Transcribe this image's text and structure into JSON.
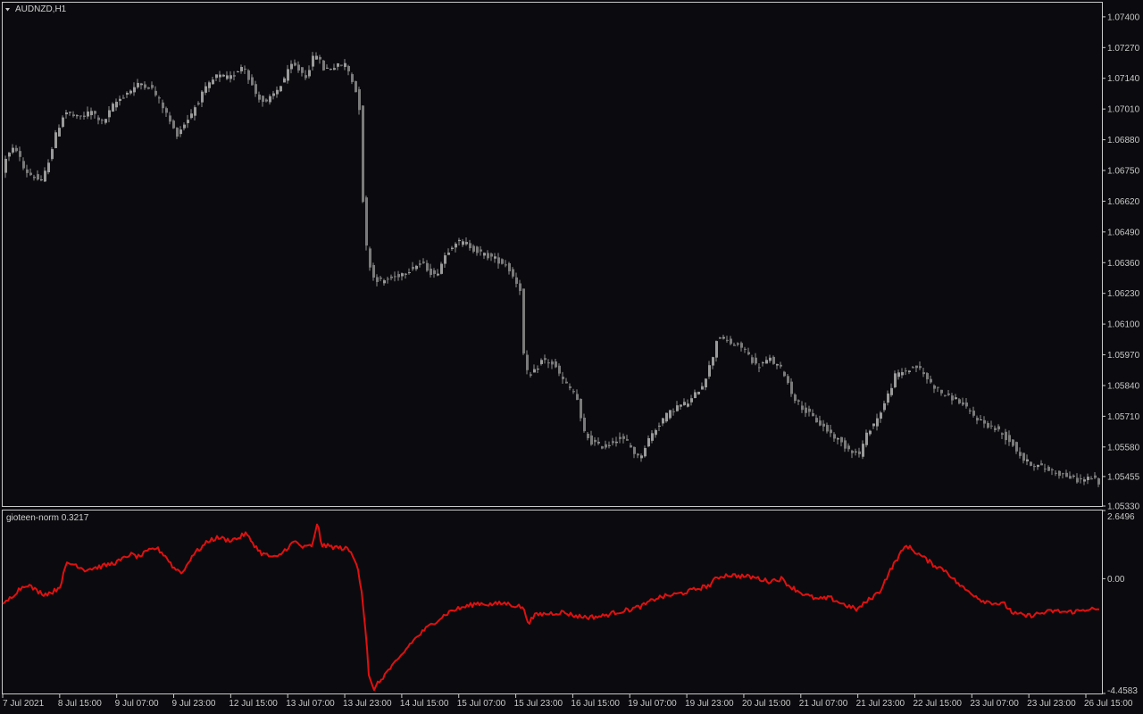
{
  "symbol_label": "AUDNZD,H1",
  "indicator_label": "gioteen-norm 0.3217",
  "colors": {
    "background": "#0b0b0f",
    "frame": "#c8c8c8",
    "candle": "#8c8c8c",
    "indicator_line": "#e01010",
    "text": "#c8c8c8"
  },
  "chart_data": [
    {
      "type": "candlestick",
      "ylim": [
        1.0533,
        1.0746
      ],
      "y_ticks": [
        "1.07400",
        "1.07270",
        "1.07140",
        "1.07010",
        "1.06880",
        "1.06750",
        "1.06620",
        "1.06490",
        "1.06360",
        "1.06230",
        "1.06100",
        "1.05970",
        "1.05840",
        "1.05710",
        "1.05580",
        "1.05455",
        "1.05330"
      ],
      "x_ticks": [
        "7 Jul 2021",
        "8 Jul 15:00",
        "9 Jul 07:00",
        "9 Jul 23:00",
        "12 Jul 15:00",
        "13 Jul 07:00",
        "13 Jul 23:00",
        "14 Jul 15:00",
        "15 Jul 07:00",
        "15 Jul 23:00",
        "16 Jul 15:00",
        "19 Jul 07:00",
        "19 Jul 23:00",
        "20 Jul 15:00",
        "21 Jul 07:00",
        "21 Jul 23:00",
        "22 Jul 15:00",
        "23 Jul 07:00",
        "23 Jul 23:00",
        "26 Jul 15:00"
      ],
      "close_path": [
        [
          0,
          1.0663
        ],
        [
          8,
          1.068
        ],
        [
          20,
          1.0685
        ],
        [
          30,
          1.0675
        ],
        [
          50,
          1.067
        ],
        [
          65,
          1.069
        ],
        [
          75,
          1.07
        ],
        [
          90,
          1.0697
        ],
        [
          105,
          1.07
        ],
        [
          118,
          1.0695
        ],
        [
          130,
          1.0703
        ],
        [
          145,
          1.0708
        ],
        [
          160,
          1.0712
        ],
        [
          172,
          1.071
        ],
        [
          185,
          1.0702
        ],
        [
          200,
          1.069
        ],
        [
          215,
          1.0698
        ],
        [
          230,
          1.0708
        ],
        [
          245,
          1.0715
        ],
        [
          260,
          1.0714
        ],
        [
          275,
          1.072
        ],
        [
          288,
          1.0708
        ],
        [
          300,
          1.0703
        ],
        [
          315,
          1.071
        ],
        [
          330,
          1.072
        ],
        [
          345,
          1.0715
        ],
        [
          356,
          1.0725
        ],
        [
          365,
          1.0718
        ],
        [
          378,
          1.0719
        ],
        [
          390,
          1.072
        ],
        [
          400,
          1.071
        ],
        [
          406,
          1.07
        ],
        [
          410,
          1.065
        ],
        [
          414,
          1.064
        ],
        [
          420,
          1.063
        ],
        [
          430,
          1.0628
        ],
        [
          445,
          1.063
        ],
        [
          460,
          1.0633
        ],
        [
          475,
          1.0636
        ],
        [
          490,
          1.063
        ],
        [
          502,
          1.064
        ],
        [
          512,
          1.0645
        ],
        [
          525,
          1.0644
        ],
        [
          540,
          1.064
        ],
        [
          555,
          1.0638
        ],
        [
          570,
          1.0635
        ],
        [
          585,
          1.0625
        ],
        [
          590,
          1.059
        ],
        [
          598,
          1.0588
        ],
        [
          610,
          1.0595
        ],
        [
          622,
          1.0593
        ],
        [
          635,
          1.0585
        ],
        [
          648,
          1.058
        ],
        [
          655,
          1.0565
        ],
        [
          665,
          1.056
        ],
        [
          680,
          1.0558
        ],
        [
          695,
          1.0562
        ],
        [
          705,
          1.056
        ],
        [
          718,
          1.0553
        ],
        [
          730,
          1.0562
        ],
        [
          745,
          1.057
        ],
        [
          760,
          1.0575
        ],
        [
          775,
          1.0577
        ],
        [
          790,
          1.0585
        ],
        [
          800,
          1.0595
        ],
        [
          806,
          1.0605
        ],
        [
          820,
          1.0602
        ],
        [
          835,
          1.06
        ],
        [
          850,
          1.0592
        ],
        [
          865,
          1.0595
        ],
        [
          880,
          1.059
        ],
        [
          890,
          1.058
        ],
        [
          905,
          1.0573
        ],
        [
          920,
          1.0568
        ],
        [
          935,
          1.0563
        ],
        [
          950,
          1.0558
        ],
        [
          965,
          1.0555
        ],
        [
          975,
          1.0565
        ],
        [
          985,
          1.057
        ],
        [
          995,
          1.0578
        ],
        [
          1005,
          1.0588
        ],
        [
          1015,
          1.059
        ],
        [
          1030,
          1.0592
        ],
        [
          1045,
          1.0585
        ],
        [
          1060,
          1.058
        ],
        [
          1075,
          1.0578
        ],
        [
          1090,
          1.0572
        ],
        [
          1105,
          1.0568
        ],
        [
          1120,
          1.0565
        ],
        [
          1135,
          1.056
        ],
        [
          1150,
          1.0552
        ],
        [
          1165,
          1.055
        ],
        [
          1180,
          1.0548
        ],
        [
          1195,
          1.0546
        ],
        [
          1210,
          1.0544
        ],
        [
          1225,
          1.0545
        ],
        [
          1232,
          1.0543
        ]
      ]
    },
    {
      "type": "line",
      "ylim": [
        -4.4583,
        2.6496
      ],
      "y_ticks": [
        "2.6496",
        "0.00",
        "-4.4583"
      ],
      "x_ticks": [],
      "series": [
        {
          "values_path": [
            [
              3,
              -1.05
            ],
            [
              10,
              -0.8
            ],
            [
              20,
              -0.45
            ],
            [
              30,
              -0.2
            ],
            [
              40,
              -0.45
            ],
            [
              50,
              -0.6
            ],
            [
              60,
              -0.5
            ],
            [
              67,
              -0.3
            ],
            [
              75,
              0.6
            ],
            [
              85,
              0.55
            ],
            [
              95,
              0.35
            ],
            [
              110,
              0.45
            ],
            [
              122,
              0.55
            ],
            [
              135,
              0.7
            ],
            [
              145,
              0.95
            ],
            [
              155,
              0.85
            ],
            [
              168,
              1.1
            ],
            [
              175,
              1.2
            ],
            [
              185,
              0.9
            ],
            [
              195,
              0.4
            ],
            [
              205,
              0.25
            ],
            [
              215,
              0.9
            ],
            [
              225,
              1.2
            ],
            [
              235,
              1.5
            ],
            [
              245,
              1.6
            ],
            [
              255,
              1.5
            ],
            [
              265,
              1.55
            ],
            [
              275,
              1.75
            ],
            [
              283,
              1.4
            ],
            [
              292,
              1.0
            ],
            [
              300,
              0.9
            ],
            [
              310,
              0.8
            ],
            [
              320,
              1.15
            ],
            [
              330,
              1.45
            ],
            [
              340,
              1.2
            ],
            [
              350,
              1.3
            ],
            [
              356,
              2.2
            ],
            [
              360,
              1.3
            ],
            [
              370,
              1.25
            ],
            [
              380,
              1.2
            ],
            [
              390,
              1.15
            ],
            [
              400,
              0.6
            ],
            [
              405,
              -0.5
            ],
            [
              410,
              -2.2
            ],
            [
              413,
              -3.8
            ],
            [
              418,
              -4.3
            ],
            [
              425,
              -4.0
            ],
            [
              435,
              -3.55
            ],
            [
              445,
              -3.2
            ],
            [
              460,
              -2.5
            ],
            [
              475,
              -2.0
            ],
            [
              490,
              -1.6
            ],
            [
              505,
              -1.25
            ],
            [
              520,
              -1.1
            ],
            [
              535,
              -0.95
            ],
            [
              550,
              -1.0
            ],
            [
              565,
              -0.95
            ],
            [
              578,
              -1.05
            ],
            [
              585,
              -1.1
            ],
            [
              592,
              -1.7
            ],
            [
              600,
              -1.4
            ],
            [
              615,
              -1.35
            ],
            [
              630,
              -1.3
            ],
            [
              645,
              -1.45
            ],
            [
              660,
              -1.5
            ],
            [
              675,
              -1.45
            ],
            [
              690,
              -1.3
            ],
            [
              705,
              -1.2
            ],
            [
              720,
              -1.05
            ],
            [
              735,
              -0.75
            ],
            [
              750,
              -0.65
            ],
            [
              765,
              -0.55
            ],
            [
              780,
              -0.4
            ],
            [
              795,
              -0.25
            ],
            [
              803,
              0.05
            ],
            [
              815,
              0.15
            ],
            [
              830,
              0.1
            ],
            [
              845,
              0.05
            ],
            [
              860,
              -0.1
            ],
            [
              875,
              0.0
            ],
            [
              885,
              -0.3
            ],
            [
              900,
              -0.6
            ],
            [
              915,
              -0.8
            ],
            [
              930,
              -0.75
            ],
            [
              945,
              -1.0
            ],
            [
              960,
              -1.2
            ],
            [
              970,
              -0.9
            ],
            [
              985,
              -0.5
            ],
            [
              995,
              0.2
            ],
            [
              1005,
              0.8
            ],
            [
              1015,
              1.3
            ],
            [
              1025,
              1.05
            ],
            [
              1035,
              0.8
            ],
            [
              1045,
              0.55
            ],
            [
              1060,
              0.3
            ],
            [
              1070,
              -0.1
            ],
            [
              1080,
              -0.4
            ],
            [
              1090,
              -0.6
            ],
            [
              1100,
              -0.85
            ],
            [
              1115,
              -0.95
            ],
            [
              1125,
              -1.0
            ],
            [
              1135,
              -1.35
            ],
            [
              1150,
              -1.45
            ],
            [
              1165,
              -1.35
            ],
            [
              1180,
              -1.25
            ],
            [
              1195,
              -1.3
            ],
            [
              1210,
              -1.25
            ],
            [
              1220,
              -1.15
            ],
            [
              1230,
              -1.25
            ]
          ]
        }
      ]
    }
  ]
}
